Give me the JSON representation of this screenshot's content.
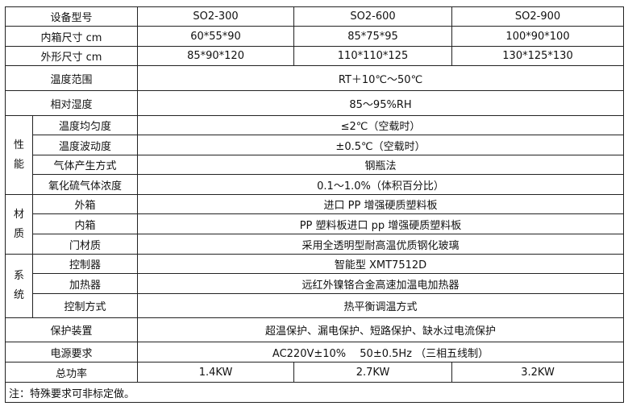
{
  "header": {
    "label": "设备型号",
    "models": [
      "SO2-300",
      "SO2-600",
      "SO2-900"
    ]
  },
  "inner_size": {
    "label": "内箱尺寸 cm",
    "values": [
      "60*55*90",
      "85*75*95",
      "100*90*100"
    ]
  },
  "outer_size": {
    "label": "外形尺寸 cm",
    "values": [
      "85*90*120",
      "110*110*125",
      "130*125*130"
    ]
  },
  "temp_range": {
    "label": "温度范围",
    "value": "RT＋10℃～50℃"
  },
  "humidity": {
    "label": "相对湿度",
    "value": "85～95%RH"
  },
  "performance": {
    "group": "性能",
    "rows": [
      {
        "label": "温度均匀度",
        "value": "≤2℃（空载时）"
      },
      {
        "label": "温度波动度",
        "value": "±0.5℃（空载时）"
      },
      {
        "label": "气体产生方式",
        "value": "钢瓶法"
      },
      {
        "label": "氧化硫气体浓度",
        "value": "0.1～1.0%（体积百分比）"
      }
    ]
  },
  "material": {
    "group": "材质",
    "rows": [
      {
        "label": "外箱",
        "value": "进口 PP 增强硬质塑料板"
      },
      {
        "label": "内箱",
        "value": "PP 塑料板进口 pp 增强硬质塑料板"
      },
      {
        "label": "门材质",
        "value": "采用全透明型耐高温优质钢化玻璃"
      }
    ]
  },
  "system": {
    "group": "系统",
    "rows": [
      {
        "label": "控制器",
        "value": "智能型 XMT7512D"
      },
      {
        "label": "加热器",
        "value": "远红外镍铬合金高速加温电加热器"
      },
      {
        "label": "控制方式",
        "value": "热平衡调温方式"
      }
    ]
  },
  "protection": {
    "label": "保护装置",
    "value": "超温保护、漏电保护、短路保护、缺水过电流保护"
  },
  "power_supply": {
    "label": "电源要求",
    "value": "AC220V±10%　 50±0.5Hz （三相五线制）"
  },
  "total_power": {
    "label": "总功率",
    "values": [
      "1.4KW",
      "2.7KW",
      "3.2KW"
    ]
  },
  "note": "注：特殊要求可非标定做。"
}
